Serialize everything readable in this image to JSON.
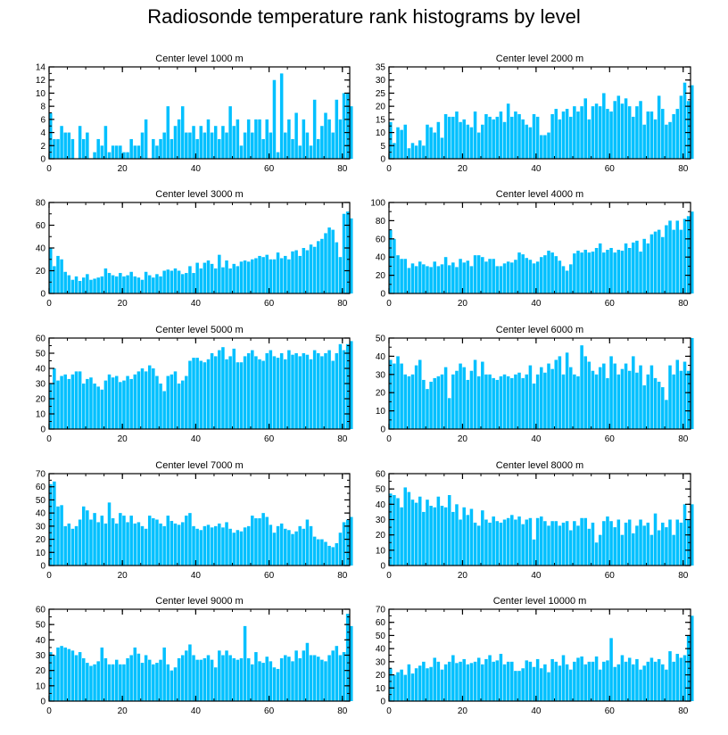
{
  "colors": {
    "bar": "#00c0ff",
    "bar_edge": "#009ad0",
    "axis": "#000000"
  },
  "chart_data": {
    "type": "bar",
    "title": "Radiosonde temperature rank histograms by level",
    "xlim": [
      0,
      82
    ],
    "xticks": [
      0,
      20,
      40,
      60,
      80
    ],
    "panels": [
      {
        "title": "Center level 1000 m",
        "ylim": [
          0,
          14
        ],
        "yticks": [
          0,
          2,
          4,
          6,
          8,
          10,
          12,
          14
        ],
        "values": [
          7,
          3,
          3,
          5,
          4,
          4,
          3,
          0,
          5,
          3,
          4,
          0,
          1,
          3,
          2,
          5,
          1,
          2,
          2,
          2,
          1,
          1,
          3,
          2,
          2,
          4,
          6,
          0,
          3,
          2,
          3,
          4,
          8,
          3,
          5,
          6,
          8,
          4,
          4,
          5,
          3,
          5,
          4,
          6,
          4,
          5,
          3,
          5,
          4,
          8,
          5,
          6,
          2,
          4,
          6,
          4,
          6,
          6,
          3,
          6,
          4,
          12,
          1,
          13,
          4,
          6,
          3,
          7,
          2,
          6,
          4,
          2,
          9,
          3,
          5,
          7,
          6,
          4,
          9,
          6,
          10,
          10,
          8
        ]
      },
      {
        "title": "Center level 2000 m",
        "ylim": [
          0,
          35
        ],
        "yticks": [
          0,
          5,
          10,
          15,
          20,
          25,
          30,
          35
        ],
        "values": [
          14,
          6,
          12,
          11,
          13,
          4,
          6,
          5,
          7,
          5,
          13,
          12,
          10,
          14,
          8,
          17,
          16,
          16,
          18,
          14,
          15,
          13,
          12,
          18,
          10,
          13,
          17,
          16,
          15,
          16,
          18,
          14,
          21,
          16,
          18,
          17,
          15,
          13,
          12,
          17,
          16,
          9,
          9,
          10,
          17,
          19,
          15,
          18,
          19,
          16,
          20,
          18,
          20,
          23,
          15,
          20,
          21,
          20,
          25,
          19,
          18,
          22,
          24,
          21,
          23,
          20,
          16,
          20,
          22,
          13,
          18,
          18,
          15,
          24,
          19,
          13,
          14,
          17,
          19,
          24,
          29,
          22,
          28
        ]
      },
      {
        "title": "Center level 3000 m",
        "ylim": [
          0,
          80
        ],
        "yticks": [
          0,
          20,
          40,
          60,
          80
        ],
        "values": [
          40,
          24,
          33,
          30,
          19,
          16,
          12,
          15,
          11,
          14,
          17,
          12,
          13,
          14,
          15,
          22,
          18,
          16,
          15,
          18,
          15,
          16,
          19,
          15,
          14,
          12,
          19,
          16,
          14,
          17,
          15,
          20,
          21,
          20,
          22,
          20,
          17,
          18,
          24,
          18,
          27,
          22,
          27,
          29,
          26,
          22,
          34,
          23,
          29,
          22,
          26,
          24,
          28,
          29,
          28,
          30,
          31,
          33,
          32,
          34,
          30,
          30,
          36,
          31,
          33,
          30,
          37,
          38,
          33,
          40,
          38,
          43,
          41,
          46,
          48,
          53,
          58,
          56,
          45,
          32,
          70,
          72,
          66
        ]
      },
      {
        "title": "Center level 4000 m",
        "ylim": [
          0,
          100
        ],
        "yticks": [
          0,
          20,
          40,
          60,
          80,
          100
        ],
        "values": [
          70,
          60,
          42,
          38,
          38,
          28,
          33,
          30,
          35,
          32,
          30,
          29,
          35,
          30,
          32,
          40,
          31,
          34,
          29,
          38,
          34,
          36,
          30,
          42,
          42,
          40,
          35,
          38,
          38,
          30,
          30,
          33,
          35,
          34,
          37,
          45,
          43,
          39,
          37,
          33,
          35,
          40,
          42,
          47,
          45,
          41,
          36,
          30,
          25,
          32,
          44,
          47,
          45,
          48,
          45,
          46,
          50,
          55,
          45,
          48,
          50,
          45,
          48,
          47,
          55,
          50,
          56,
          58,
          46,
          60,
          55,
          65,
          68,
          70,
          62,
          75,
          80,
          70,
          80,
          70,
          82,
          85,
          90
        ]
      },
      {
        "title": "Center level 5000 m",
        "ylim": [
          0,
          60
        ],
        "yticks": [
          0,
          10,
          20,
          30,
          40,
          50,
          60
        ],
        "values": [
          30,
          40,
          32,
          35,
          36,
          33,
          36,
          38,
          38,
          30,
          33,
          34,
          30,
          28,
          26,
          32,
          36,
          34,
          35,
          31,
          32,
          35,
          33,
          36,
          38,
          40,
          38,
          42,
          40,
          35,
          30,
          25,
          35,
          36,
          38,
          30,
          32,
          35,
          45,
          47,
          47,
          45,
          44,
          46,
          50,
          48,
          52,
          54,
          46,
          48,
          53,
          44,
          44,
          48,
          50,
          52,
          48,
          46,
          45,
          50,
          52,
          48,
          47,
          50,
          46,
          52,
          49,
          50,
          48,
          50,
          49,
          46,
          52,
          50,
          48,
          50,
          52,
          45,
          50,
          56,
          52,
          56,
          58
        ]
      },
      {
        "title": "Center level 6000 m",
        "ylim": [
          0,
          50
        ],
        "yticks": [
          0,
          10,
          20,
          30,
          40,
          50
        ],
        "values": [
          38,
          36,
          40,
          36,
          30,
          29,
          30,
          35,
          38,
          27,
          22,
          26,
          28,
          29,
          30,
          34,
          17,
          30,
          32,
          36,
          34,
          27,
          32,
          38,
          29,
          37,
          30,
          30,
          28,
          27,
          29,
          30,
          29,
          28,
          30,
          31,
          28,
          30,
          35,
          25,
          30,
          34,
          31,
          36,
          33,
          38,
          40,
          30,
          42,
          34,
          30,
          29,
          46,
          40,
          37,
          32,
          30,
          34,
          36,
          28,
          40,
          36,
          30,
          33,
          36,
          32,
          40,
          31,
          35,
          24,
          30,
          35,
          28,
          26,
          23,
          16,
          35,
          30,
          38,
          32,
          37,
          32,
          50
        ]
      },
      {
        "title": "Center level 7000 m",
        "ylim": [
          0,
          70
        ],
        "yticks": [
          0,
          10,
          20,
          30,
          40,
          50,
          60,
          70
        ],
        "values": [
          62,
          64,
          45,
          46,
          30,
          32,
          28,
          30,
          35,
          45,
          42,
          35,
          40,
          33,
          38,
          32,
          48,
          36,
          32,
          40,
          38,
          33,
          38,
          32,
          33,
          30,
          28,
          38,
          36,
          35,
          32,
          30,
          38,
          34,
          32,
          31,
          33,
          38,
          40,
          30,
          28,
          27,
          30,
          31,
          29,
          30,
          32,
          29,
          33,
          28,
          25,
          27,
          26,
          29,
          30,
          38,
          36,
          36,
          40,
          37,
          31,
          25,
          30,
          32,
          28,
          27,
          24,
          26,
          30,
          28,
          35,
          30,
          22,
          20,
          20,
          18,
          15,
          14,
          17,
          25,
          33,
          35,
          37
        ]
      },
      {
        "title": "Center level 8000 m",
        "ylim": [
          0,
          60
        ],
        "yticks": [
          0,
          10,
          20,
          30,
          40,
          50,
          60
        ],
        "values": [
          47,
          46,
          44,
          38,
          51,
          48,
          43,
          41,
          45,
          35,
          43,
          39,
          38,
          45,
          39,
          38,
          46,
          35,
          40,
          30,
          38,
          33,
          37,
          28,
          26,
          36,
          30,
          28,
          32,
          29,
          28,
          30,
          31,
          33,
          30,
          32,
          27,
          30,
          31,
          17,
          31,
          32,
          29,
          26,
          29,
          29,
          26,
          28,
          29,
          23,
          29,
          26,
          31,
          31,
          24,
          28,
          15,
          20,
          29,
          32,
          29,
          25,
          30,
          20,
          28,
          30,
          21,
          26,
          30,
          26,
          28,
          20,
          34,
          23,
          28,
          25,
          30,
          20,
          30,
          28,
          40,
          30,
          40
        ]
      },
      {
        "title": "Center level 9000 m",
        "ylim": [
          0,
          60
        ],
        "yticks": [
          0,
          10,
          20,
          30,
          40,
          50,
          60
        ],
        "values": [
          32,
          30,
          35,
          36,
          35,
          34,
          33,
          30,
          32,
          28,
          25,
          23,
          24,
          26,
          35,
          28,
          24,
          24,
          27,
          24,
          24,
          28,
          30,
          35,
          31,
          25,
          30,
          27,
          24,
          25,
          27,
          35,
          24,
          20,
          22,
          28,
          30,
          33,
          37,
          30,
          27,
          27,
          28,
          30,
          27,
          22,
          33,
          30,
          33,
          30,
          28,
          27,
          28,
          49,
          28,
          24,
          32,
          26,
          25,
          29,
          26,
          22,
          21,
          28,
          30,
          29,
          26,
          33,
          28,
          33,
          38,
          30,
          30,
          29,
          27,
          26,
          30,
          33,
          36,
          30,
          32,
          57,
          49
        ]
      },
      {
        "title": "Center level 10000 m",
        "ylim": [
          0,
          70
        ],
        "yticks": [
          0,
          10,
          20,
          30,
          40,
          50,
          60,
          70
        ],
        "values": [
          25,
          20,
          22,
          24,
          20,
          28,
          21,
          25,
          27,
          30,
          25,
          26,
          33,
          30,
          24,
          28,
          30,
          35,
          29,
          30,
          32,
          28,
          29,
          30,
          33,
          28,
          32,
          35,
          30,
          31,
          36,
          28,
          30,
          30,
          23,
          23,
          25,
          31,
          30,
          26,
          32,
          25,
          28,
          22,
          32,
          30,
          27,
          35,
          28,
          24,
          30,
          33,
          34,
          28,
          30,
          30,
          34,
          24,
          30,
          31,
          48,
          26,
          28,
          35,
          30,
          33,
          28,
          32,
          24,
          27,
          30,
          33,
          30,
          32,
          28,
          24,
          38,
          30,
          36,
          33,
          35,
          50,
          65
        ]
      }
    ]
  }
}
